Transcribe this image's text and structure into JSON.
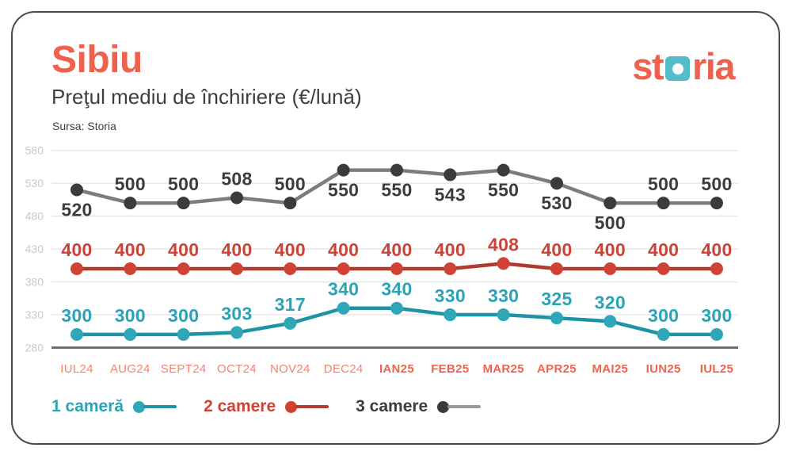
{
  "header": {
    "title": "Sibiu",
    "subtitle": "Preţul mediu de închiriere (€/lună)",
    "source": "Sursa: Storia"
  },
  "logo": {
    "text_before": "st",
    "text_after": "ria",
    "coral": "#F0614D",
    "teal": "#52BCC8"
  },
  "chart_data": {
    "type": "line",
    "title": "Preţul mediu de închiriere (€/lună)",
    "ylim": [
      280,
      580
    ],
    "yticks": [
      280,
      330,
      380,
      430,
      480,
      530,
      580
    ],
    "grid": true,
    "legend_position": "bottom",
    "categories": [
      "IUL24",
      "AUG24",
      "SEPT24",
      "OCT24",
      "NOV24",
      "DEC24",
      "IAN25",
      "FEB25",
      "MAR25",
      "APR25",
      "MAI25",
      "IUN25",
      "IUL25"
    ],
    "bold_from_index": 6,
    "axis_colors": {
      "ytick": "#C9C9C9",
      "xtick_regular": "#F4836E",
      "xtick_bold": "#EE6350",
      "grid": "#E7E7E7",
      "baseline": "#6E6E6E"
    },
    "series": [
      {
        "id": "1-camera",
        "name": "1 cameră",
        "values": [
          300,
          300,
          300,
          303,
          317,
          340,
          340,
          330,
          330,
          325,
          320,
          300,
          300
        ],
        "label_pos": [
          "above",
          "above",
          "above",
          "above",
          "above",
          "above",
          "above",
          "above",
          "above",
          "above",
          "above",
          "above",
          "above"
        ],
        "colors": {
          "line": "#1E93A4",
          "dot": "#2FA7B8",
          "label": "#2BA3B6",
          "legend_line": "#1E93A4"
        }
      },
      {
        "id": "2-camere",
        "name": "2 camere",
        "values": [
          400,
          400,
          400,
          400,
          400,
          400,
          400,
          400,
          408,
          400,
          400,
          400,
          400
        ],
        "label_pos": [
          "above",
          "above",
          "above",
          "above",
          "above",
          "above",
          "above",
          "above",
          "above",
          "above",
          "above",
          "above",
          "above"
        ],
        "colors": {
          "line": "#AF3A30",
          "dot": "#D04334",
          "label": "#CB4337",
          "legend_line": "#AF3A30"
        }
      },
      {
        "id": "3-camere",
        "name": "3 camere",
        "values": [
          520,
          500,
          500,
          508,
          500,
          550,
          550,
          543,
          550,
          530,
          500,
          500,
          500
        ],
        "label_pos": [
          "below",
          "above",
          "above",
          "above",
          "above",
          "below",
          "below",
          "below",
          "below",
          "below",
          "below",
          "above",
          "above"
        ],
        "colors": {
          "line": "#7C7C7C",
          "dot": "#3B3B3B",
          "label": "#3C3C3C",
          "legend_line": "#9A9A9A"
        }
      }
    ]
  }
}
